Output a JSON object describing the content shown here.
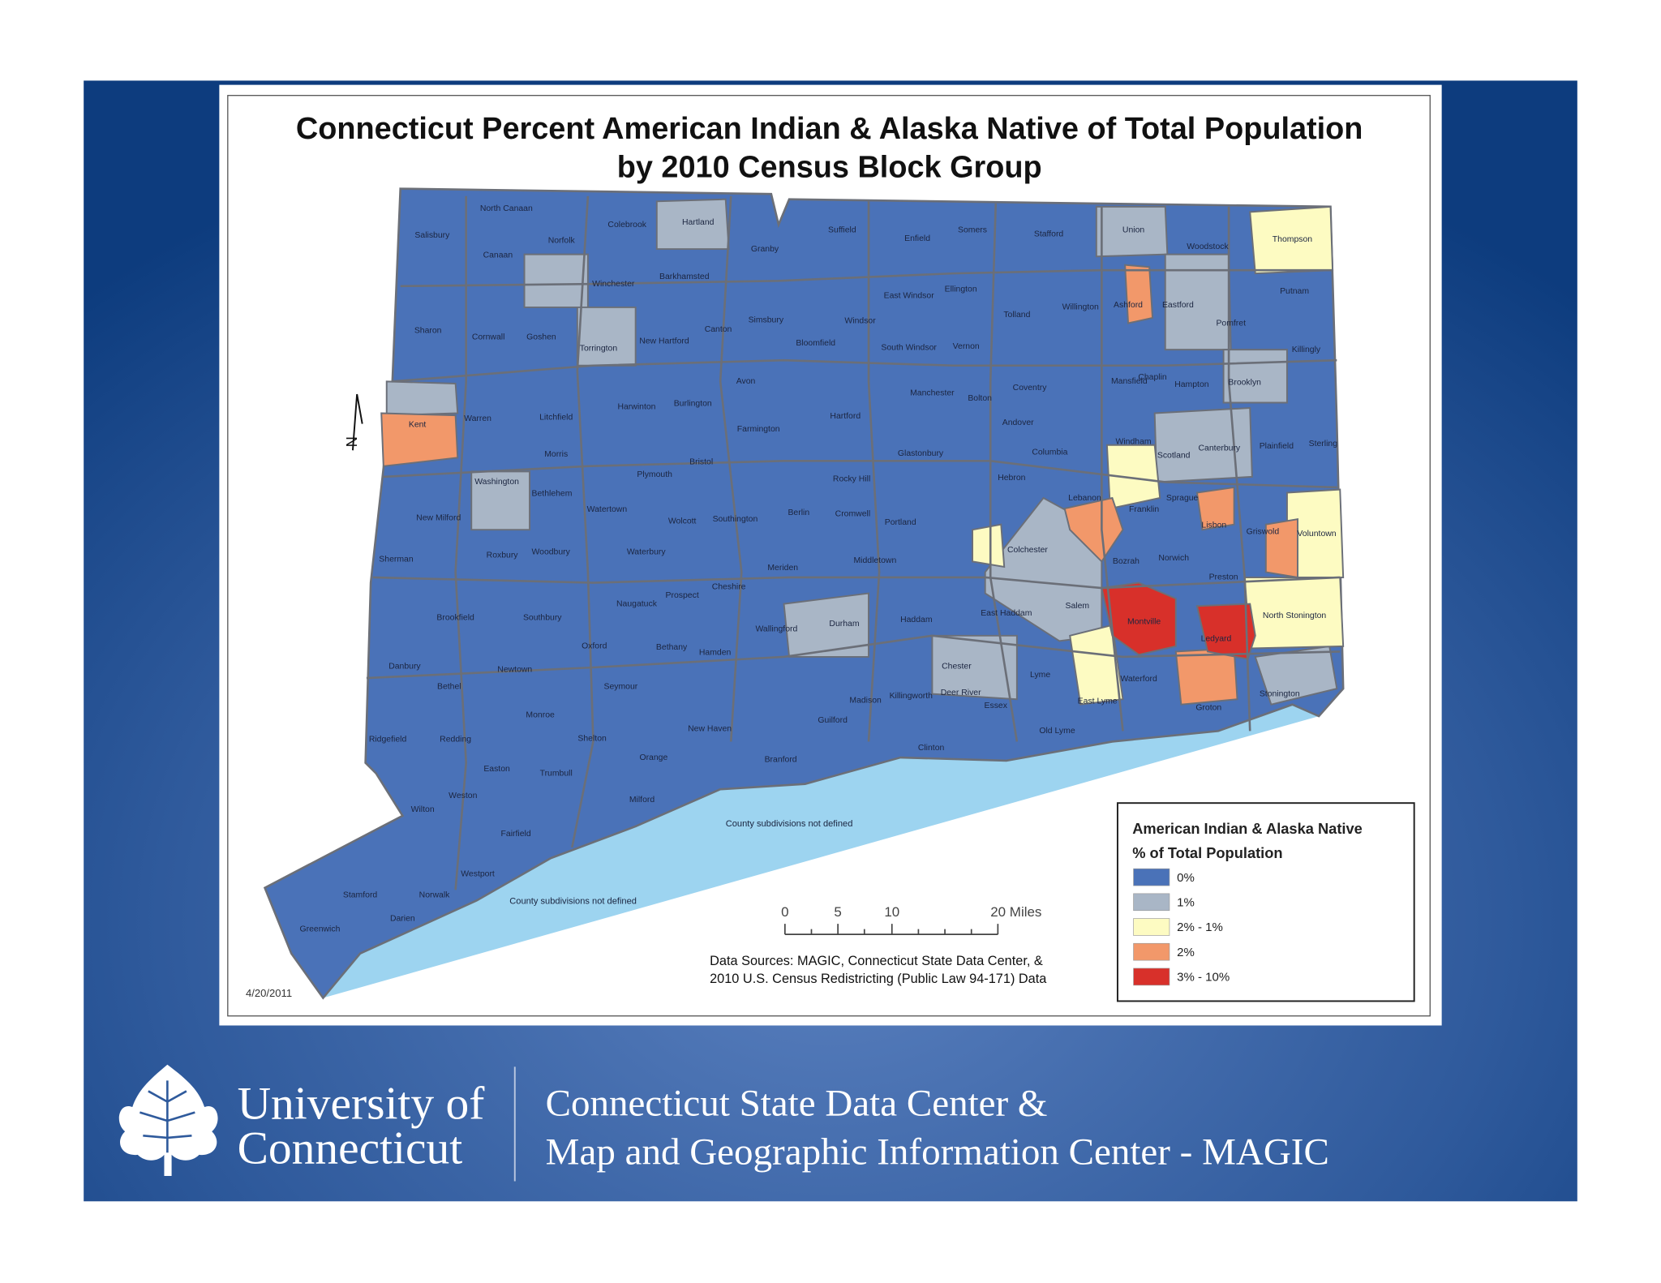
{
  "header": {
    "title_lines": [
      "Connecticut Percent American Indian & Alaska Native of Total Population",
      "by 2010 Census Block Group"
    ]
  },
  "map": {
    "towns": [
      "North Canaan",
      "Salisbury",
      "Colebrook",
      "Hartland",
      "Suffield",
      "Enfield",
      "Somers",
      "Stafford",
      "Union",
      "Woodstock",
      "Thompson",
      "Canaan",
      "Norfolk",
      "Granby",
      "Winchester",
      "Barkhamsted",
      "East Windsor",
      "Ellington",
      "Putnam",
      "Willington",
      "Ashford",
      "Eastford",
      "Tolland",
      "Pomfret",
      "Sharon",
      "Cornwall",
      "Goshen",
      "Simsbury",
      "Canton",
      "Windsor",
      "Torrington",
      "New Hartford",
      "Bloomfield",
      "South Windsor",
      "Vernon",
      "Killingly",
      "Avon",
      "Mansfield",
      "Chaplin",
      "Hampton",
      "Brooklyn",
      "Coventry",
      "Manchester",
      "Bolton",
      "Harwinton",
      "Burlington",
      "Kent",
      "Warren",
      "Litchfield",
      "Hartford",
      "Andover",
      "Farmington",
      "Windham",
      "Plainfield",
      "Sterling",
      "Scotland",
      "Canterbury",
      "Morris",
      "Glastonbury",
      "Columbia",
      "Bristol",
      "Washington",
      "Plymouth",
      "Rocky Hill",
      "Hebron",
      "Bethlehem",
      "Lebanon",
      "Sprague",
      "Watertown",
      "Berlin",
      "Cromwell",
      "Franklin",
      "New Milford",
      "Wolcott",
      "Southington",
      "Portland",
      "Lisbon",
      "Griswold",
      "Voluntown",
      "Colchester",
      "Woodbury",
      "Roxbury",
      "Waterbury",
      "Sherman",
      "Middletown",
      "Bozrah",
      "Norwich",
      "Meriden",
      "Cheshire",
      "Preston",
      "Prospect",
      "Naugatuck",
      "Salem",
      "East Haddam",
      "Montville",
      "North Stonington",
      "Brookfield",
      "Southbury",
      "Haddam",
      "Durham",
      "Wallingford",
      "Ledyard",
      "Oxford",
      "Bethany",
      "Hamden",
      "Danbury",
      "Newtown",
      "Chester",
      "Lyme",
      "Waterford",
      "Seymour",
      "Bethel",
      "Deer River",
      "Killingworth",
      "Madison",
      "Stonington",
      "Essex",
      "East Lyme",
      "Groton",
      "Monroe",
      "Guilford",
      "New Haven",
      "Old Lyme",
      "Ridgefield",
      "Redding",
      "Shelton",
      "Clinton",
      "Orange",
      "Branford",
      "Easton",
      "Trumbull",
      "Milford",
      "Weston",
      "Wilton",
      "Fairfield",
      "Westport",
      "Stamford",
      "Norwalk",
      "Darien",
      "Greenwich"
    ],
    "notes": [
      "County subdivisions not defined",
      "County subdivisions not defined"
    ],
    "north": "N",
    "date": "4/20/2011",
    "scale": {
      "ticks": [
        "0",
        "5",
        "10",
        "20 Miles"
      ]
    },
    "sources": [
      "Data Sources: MAGIC, Connecticut State Data Center, &",
      "2010 U.S. Census Redistricting (Public Law 94-171) Data"
    ]
  },
  "legend": {
    "title_lines": [
      "American Indian & Alaska Native",
      "% of Total Population"
    ],
    "items": [
      {
        "label": "0%",
        "color": "#4a72b8"
      },
      {
        "label": "1%",
        "color": "#a9b6c6"
      },
      {
        "label": "2% - 1%",
        "color": "#fdfbc2"
      },
      {
        "label": "2%",
        "color": "#f2986a"
      },
      {
        "label": "3% - 10%",
        "color": "#d8302a"
      }
    ]
  },
  "footer": {
    "logo_lines": [
      "University of",
      "Connecticut"
    ],
    "center_lines": [
      "Connecticut State Data Center &",
      "Map and Geographic Information Center - MAGIC"
    ]
  }
}
